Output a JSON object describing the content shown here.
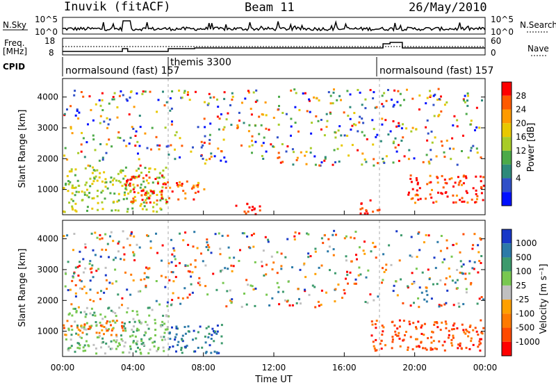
{
  "header": {
    "station": "Inuvik (fitACF)",
    "beam": "Beam 11",
    "date": "26/May/2010"
  },
  "top_panels": {
    "nsky_label": "N.Sky",
    "nsky_ticks": [
      "10^5",
      "10^0"
    ],
    "nsearch_label": "N.Search",
    "nsearch_ticks": [
      "10^5",
      "10^0"
    ],
    "freq_label_1": "Freq.",
    "freq_label_2": "[MHz]",
    "freq_ticks": [
      "18",
      "8"
    ],
    "nave_label": "Nave",
    "nave_ticks": [
      "60",
      "0"
    ],
    "cpid_label": "CPID",
    "cpid_segments": [
      {
        "label": "normalsound (fast) 157",
        "start_hour": 0,
        "end_hour": 6
      },
      {
        "label": "themis 3300",
        "start_hour": 6,
        "end_hour": 18
      },
      {
        "label": "normalsound (fast) 157",
        "start_hour": 18,
        "end_hour": 24
      }
    ]
  },
  "power_colorbar": {
    "label": "Power [dB]",
    "ticks": [
      "28",
      "24",
      "20",
      "16",
      "12",
      "8",
      "4"
    ],
    "colors": [
      "#ff0000",
      "#ff5a00",
      "#ff9a00",
      "#e8c800",
      "#a8cc28",
      "#4caa48",
      "#2e8a7a",
      "#3050c8",
      "#0010ff"
    ]
  },
  "velocity_colorbar": {
    "label": "Velocity [m s⁻¹]",
    "ticks": [
      "1000",
      "500",
      "100",
      "25",
      "-25",
      "-100",
      "-500",
      "-1000"
    ],
    "colors": [
      "#1838c8",
      "#2c7aa8",
      "#3c9a6c",
      "#78c850",
      "#c0c0c0",
      "#ffa000",
      "#ff7a00",
      "#ff4a00",
      "#ff0000"
    ]
  },
  "chart_data": [
    {
      "type": "heatmap",
      "title": "",
      "ylabel": "Slant Range [km]",
      "yticks": [
        "1000",
        "2000",
        "3000",
        "4000"
      ],
      "ylim": [
        180,
        4600
      ],
      "xlim_hours": [
        0,
        24
      ],
      "colorbar": "Power [dB]",
      "regions": [
        {
          "start_hour": 0,
          "end_hour": 6,
          "range_km": [
            300,
            1800
          ],
          "dB": 14
        },
        {
          "start_hour": 3.5,
          "end_hour": 6,
          "range_km": [
            600,
            1500
          ],
          "dB": 28
        },
        {
          "start_hour": 6,
          "end_hour": 8,
          "range_km": [
            700,
            1300
          ],
          "dB": 24
        },
        {
          "start_hour": 9.8,
          "end_hour": 11.5,
          "range_km": [
            200,
            600
          ],
          "dB": 28
        },
        {
          "start_hour": 16.7,
          "end_hour": 18,
          "range_km": [
            200,
            700
          ],
          "dB": 28
        },
        {
          "start_hour": 19.5,
          "end_hour": 24,
          "range_km": [
            600,
            1500
          ],
          "dB": 26
        }
      ]
    },
    {
      "type": "heatmap",
      "title": "",
      "ylabel": "Slant Range [km]",
      "yticks": [
        "1000",
        "2000",
        "3000",
        "4000"
      ],
      "ylim": [
        180,
        4600
      ],
      "xlim_hours": [
        0,
        24
      ],
      "xlabel": "Time UT",
      "xticks": [
        "00:00",
        "04:00",
        "08:00",
        "12:00",
        "16:00",
        "20:00",
        "00:00"
      ],
      "colorbar": "Velocity [m s⁻¹]",
      "regions": [
        {
          "start_hour": 0,
          "end_hour": 6,
          "range_km": [
            300,
            1800
          ],
          "velocity": 100
        },
        {
          "start_hour": 0,
          "end_hour": 3.5,
          "range_km": [
            900,
            1400
          ],
          "velocity": -100
        },
        {
          "start_hour": 6,
          "end_hour": 9,
          "range_km": [
            300,
            1300
          ],
          "velocity": 500
        },
        {
          "start_hour": 17.5,
          "end_hour": 24,
          "range_km": [
            400,
            1400
          ],
          "velocity": -500
        }
      ]
    }
  ],
  "xaxis": {
    "label": "Time UT",
    "ticks": [
      "00:00",
      "04:00",
      "08:00",
      "12:00",
      "16:00",
      "20:00",
      "00:00"
    ]
  }
}
